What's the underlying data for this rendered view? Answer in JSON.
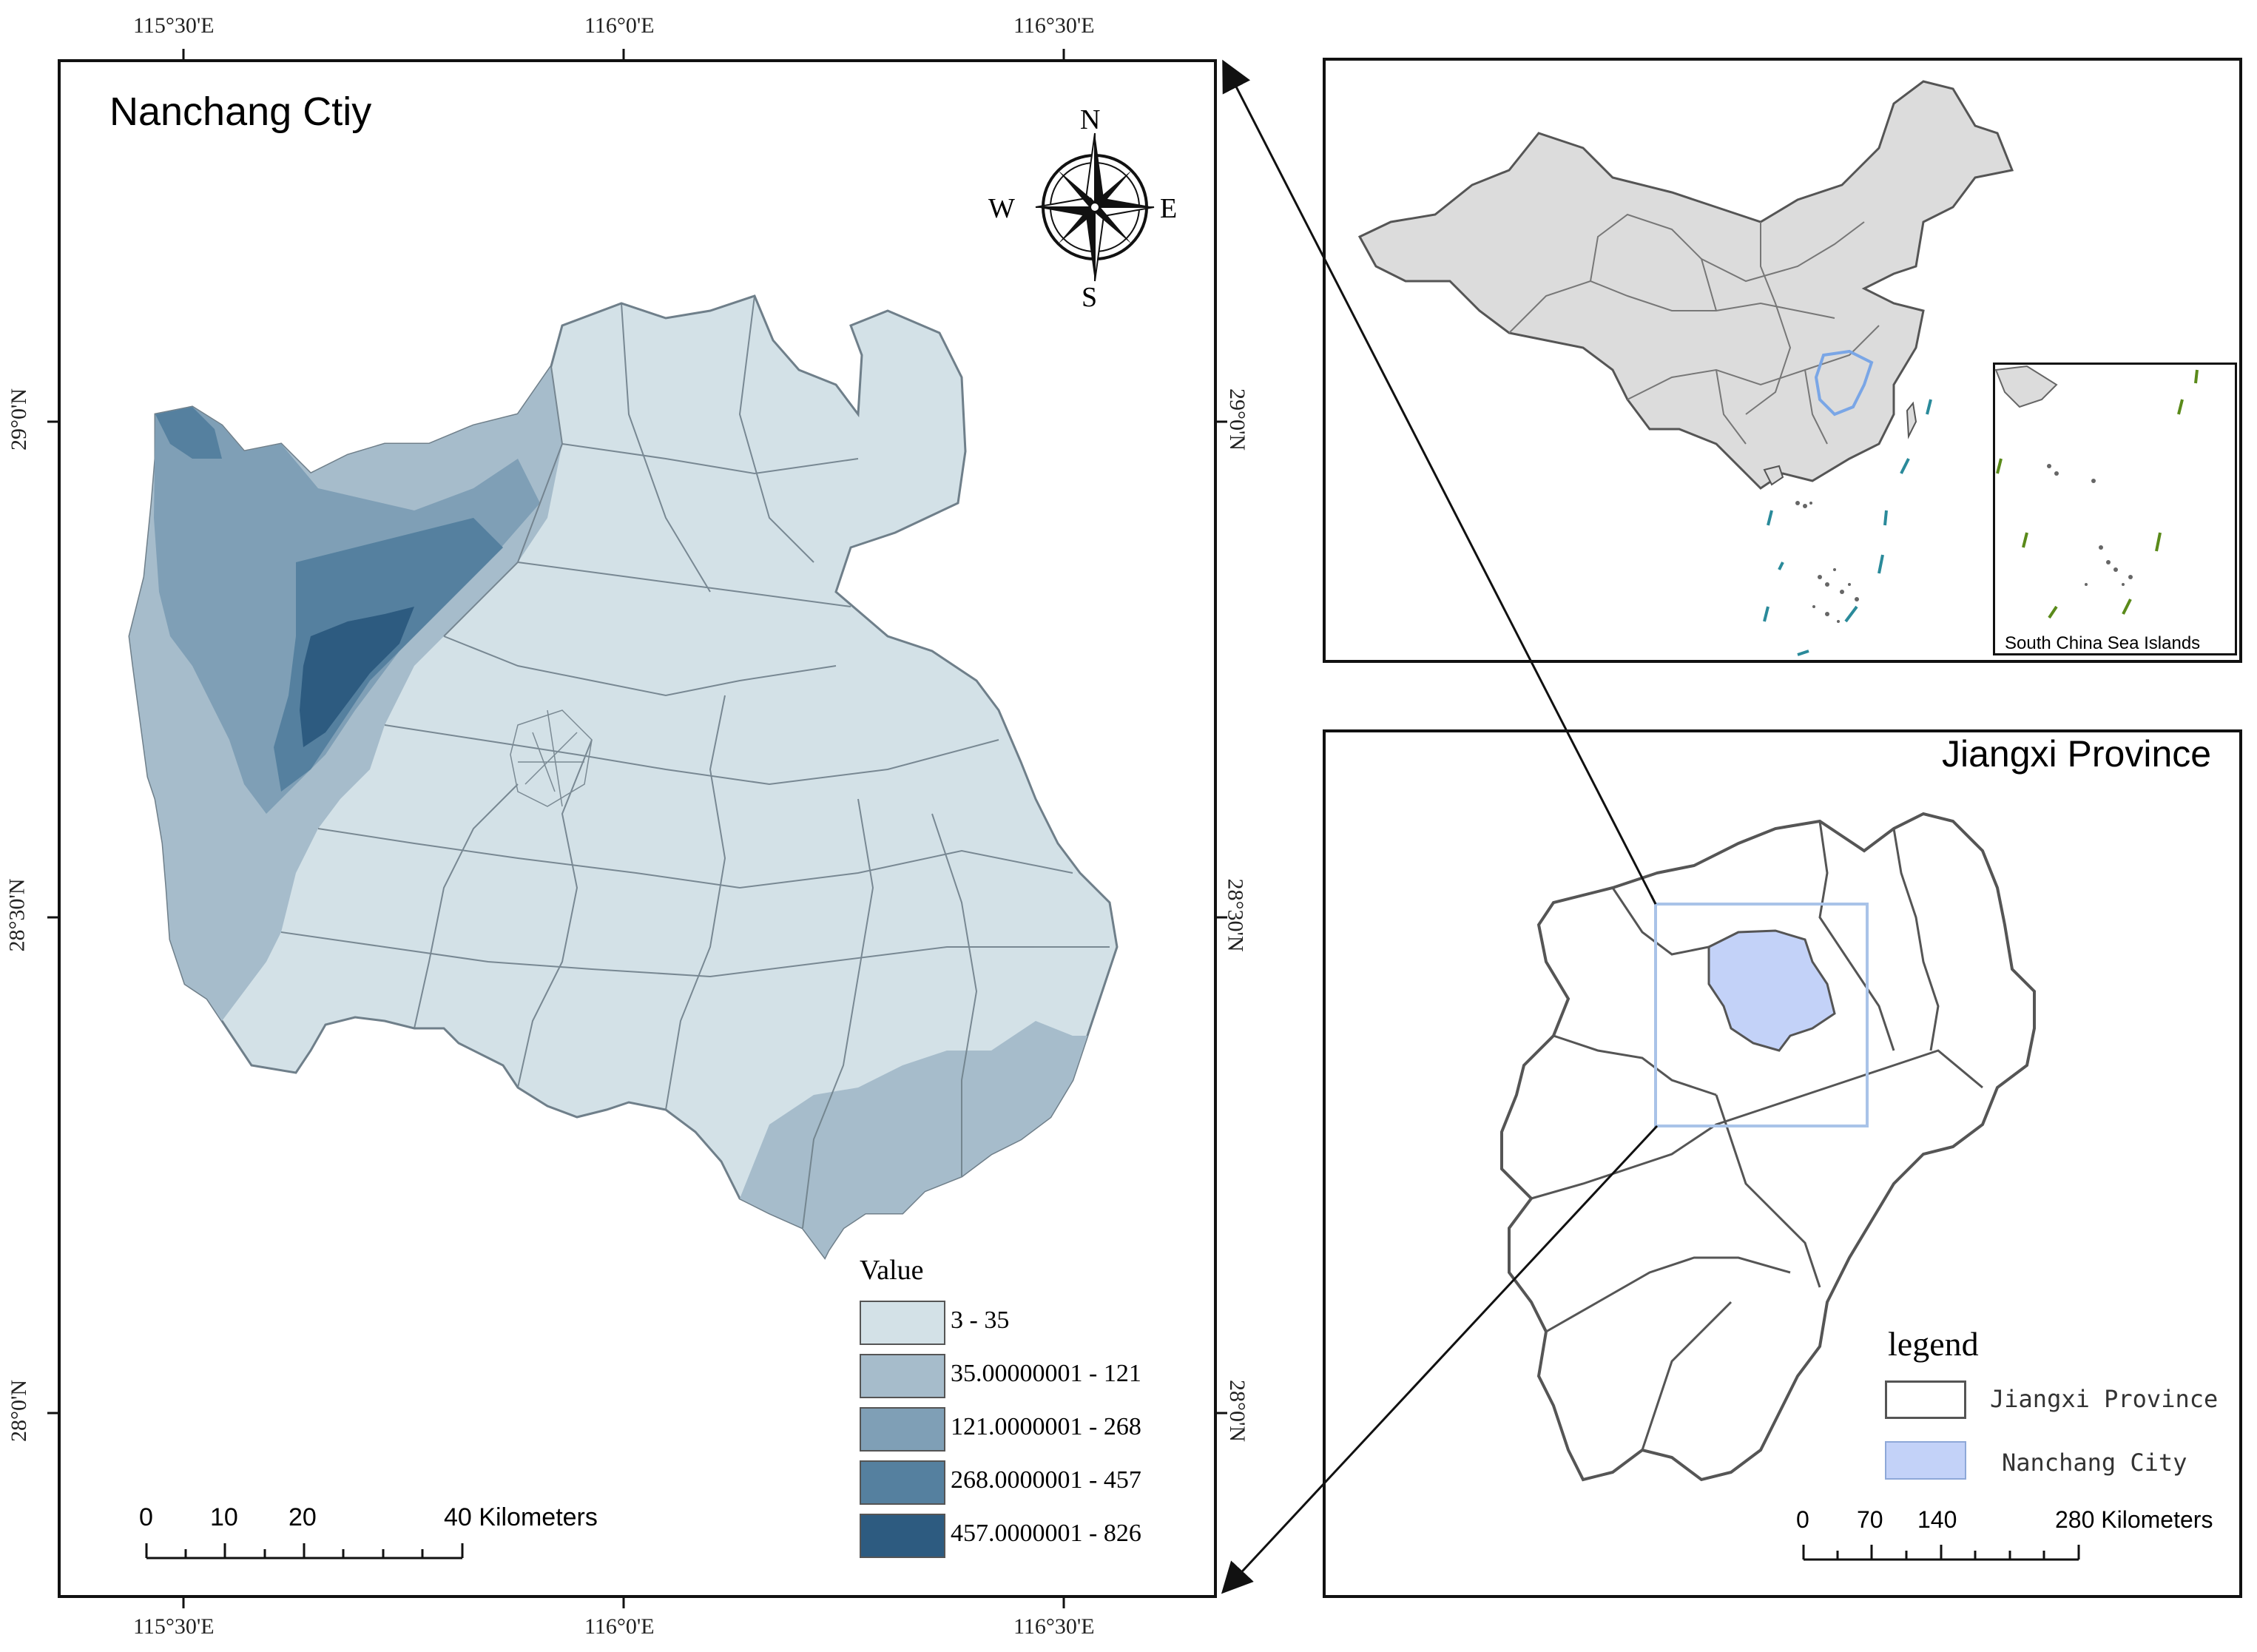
{
  "main_map": {
    "title": "Nanchang Ctiy",
    "lon_ticks": [
      "115°30'E",
      "116°0'E",
      "116°30'E"
    ],
    "lat_ticks": [
      "29°0'N",
      "28°30'N",
      "28°0'N"
    ],
    "compass": {
      "n": "N",
      "e": "E",
      "s": "S",
      "w": "W"
    },
    "legend": {
      "title": "Value",
      "classes": [
        {
          "label": "3 - 35",
          "color": "#d3e1e7"
        },
        {
          "label": "35.00000001 - 121",
          "color": "#a6bccb"
        },
        {
          "label": "121.0000001 - 268",
          "color": "#7f9fb6"
        },
        {
          "label": "268.0000001 - 457",
          "color": "#55809f"
        },
        {
          "label": "457.0000001 - 826",
          "color": "#2d5b80"
        }
      ]
    },
    "scalebar": {
      "labels": [
        "0",
        "10",
        "20",
        "40 Kilometers"
      ]
    }
  },
  "china_inset": {
    "subinset_label": "South China Sea Islands",
    "land_color": "#dcdcdc",
    "highlight_color": "#7aa6e6"
  },
  "jiangxi_inset": {
    "title": "Jiangxi Province",
    "legend": {
      "title": "legend",
      "items": [
        {
          "label": "Jiangxi Province",
          "color": "#ffffff"
        },
        {
          "label": "Nanchang City",
          "color": "#c3d2f8"
        }
      ]
    },
    "scalebar": {
      "labels": [
        "0",
        "70",
        "140",
        "280 Kilometers"
      ]
    }
  }
}
